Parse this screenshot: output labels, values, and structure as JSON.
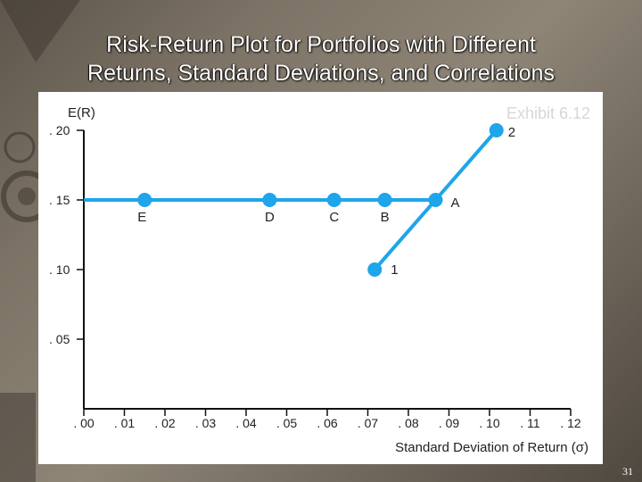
{
  "slide": {
    "title_line1": "Risk-Return Plot for Portfolios with Different",
    "title_line2": "Returns, Standard Deviations, and Correlations",
    "exhibit": "Exhibit 6.12",
    "page_number": "31"
  },
  "colors": {
    "series": "#1ea5ea",
    "axis": "#111111",
    "panel": "#ffffff"
  },
  "chart_data": {
    "type": "line",
    "title": "",
    "xlabel": "Standard Deviation of Return (σ)",
    "ylabel": "E(R)",
    "xlim": [
      0.0,
      0.12
    ],
    "ylim": [
      0.0,
      0.2
    ],
    "grid": false,
    "x_ticks": [
      0.0,
      0.01,
      0.02,
      0.03,
      0.04,
      0.05,
      0.06,
      0.07,
      0.08,
      0.09,
      0.1,
      0.11,
      0.12
    ],
    "x_tick_labels": [
      ". 00",
      ". 01",
      ". 02",
      ". 03",
      ". 04",
      ". 05",
      ". 06",
      ". 07",
      ". 08",
      ". 09",
      ". 10",
      ". 11",
      ". 12"
    ],
    "y_ticks": [
      0.05,
      0.1,
      0.15,
      0.2
    ],
    "y_tick_labels": [
      ". 05",
      ". 10",
      ". 15",
      ". 20"
    ],
    "series": [
      {
        "values": [
          {
            "x": 0.0,
            "y": 0.15
          },
          {
            "x": 0.0867,
            "y": 0.15
          }
        ],
        "marker": false
      },
      {
        "values": [
          {
            "x": 0.0717,
            "y": 0.1
          },
          {
            "x": 0.1017,
            "y": 0.2
          }
        ],
        "marker": false
      }
    ],
    "points": [
      {
        "label": "E",
        "x": 0.015,
        "y": 0.15
      },
      {
        "label": "D",
        "x": 0.0458,
        "y": 0.15
      },
      {
        "label": "C",
        "x": 0.0617,
        "y": 0.15
      },
      {
        "label": "B",
        "x": 0.0742,
        "y": 0.15
      },
      {
        "label": "A",
        "x": 0.0867,
        "y": 0.15
      },
      {
        "label": "1",
        "x": 0.0717,
        "y": 0.1
      },
      {
        "label": "2",
        "x": 0.1017,
        "y": 0.2
      }
    ]
  }
}
